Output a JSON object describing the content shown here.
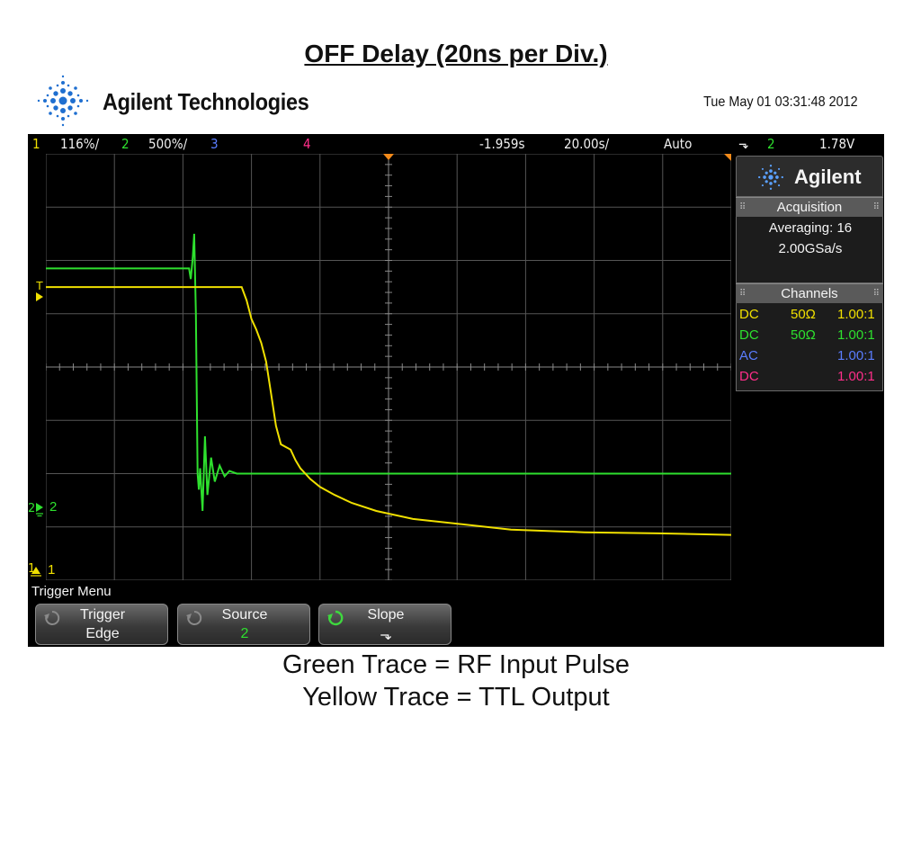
{
  "title": "OFF Delay (20ns per Div.)",
  "brand": {
    "name": "Agilent Technologies",
    "timestamp": "Tue May 01 03:31:48 2012"
  },
  "status_bar": {
    "ch1_num": "1",
    "ch1_scale": "116%/",
    "ch2_num": "2",
    "ch2_scale": "500%/",
    "ch3_num": "3",
    "ch4_num": "4",
    "delay": "-1.959s",
    "timebase": "20.00s/",
    "trigger_mode": "Auto",
    "trigger_slope_symbol": "⬎",
    "trigger_source": "2",
    "trigger_level": "1.78V"
  },
  "side_panel": {
    "brand": "Agilent",
    "acquisition": {
      "header": "Acquisition",
      "mode": "Averaging: 16",
      "rate": "2.00GSa/s"
    },
    "channels": {
      "header": "Channels",
      "rows": [
        {
          "coupling": "DC",
          "impedance": "50Ω",
          "probe": "1.00:1",
          "color": "#f0e000"
        },
        {
          "coupling": "DC",
          "impedance": "50Ω",
          "probe": "1.00:1",
          "color": "#2ee02e"
        },
        {
          "coupling": "AC",
          "impedance": "",
          "probe": "1.00:1",
          "color": "#5a7dff"
        },
        {
          "coupling": "DC",
          "impedance": "",
          "probe": "1.00:1",
          "color": "#ff2e8a"
        }
      ]
    }
  },
  "screen_markers": {
    "trigger_level_marker": "T",
    "ch2_marker": "2",
    "ch1_marker": "1"
  },
  "menu": {
    "title": "Trigger Menu",
    "softkeys": [
      {
        "label": "Trigger",
        "value": "Edge"
      },
      {
        "label": "Source",
        "value": "2"
      },
      {
        "label": "Slope",
        "value": "⬎"
      }
    ]
  },
  "captions": {
    "line1": "Green Trace = RF Input Pulse",
    "line2": "Yellow Trace = TTL Output"
  },
  "traces": {
    "green": {
      "name": "RF Input Pulse",
      "color": "#2ee02e",
      "t_ns": [
        -80,
        -21.5,
        -20.8,
        -20,
        -19.4,
        -18.7,
        -18,
        -17.5,
        -17,
        -16,
        -15,
        -14,
        -12.5,
        -11,
        -9,
        -7,
        -5,
        -2,
        0,
        40,
        80,
        120,
        160,
        200
      ],
      "div": [
        1.85,
        1.85,
        1.65,
        2.05,
        2.5,
        1.0,
        -2.0,
        -2.3,
        -1.9,
        -2.7,
        -1.3,
        -2.4,
        -1.7,
        -2.15,
        -1.85,
        -2.05,
        -1.95,
        -2.0,
        -2.0,
        -2.0,
        -2.0,
        -2.0,
        -2.0,
        -2.0
      ]
    },
    "yellow": {
      "name": "TTL Output",
      "color": "#f0e000",
      "t_ns": [
        -80,
        0,
        2,
        4,
        6,
        8,
        10,
        12,
        14,
        16,
        18,
        20,
        22,
        24,
        26,
        28,
        32,
        38,
        45,
        55,
        70,
        90,
        110,
        140,
        170,
        200
      ],
      "div": [
        1.5,
        1.5,
        1.25,
        0.9,
        0.7,
        0.45,
        0.1,
        -0.5,
        -1.1,
        -1.45,
        -1.5,
        -1.55,
        -1.75,
        -1.9,
        -2.0,
        -2.1,
        -2.25,
        -2.4,
        -2.55,
        -2.7,
        -2.85,
        -2.95,
        -3.05,
        -3.1,
        -3.12,
        -3.15
      ]
    },
    "time_range_ns": [
      -80,
      200
    ],
    "vertical_range_div": [
      -4,
      4
    ]
  }
}
